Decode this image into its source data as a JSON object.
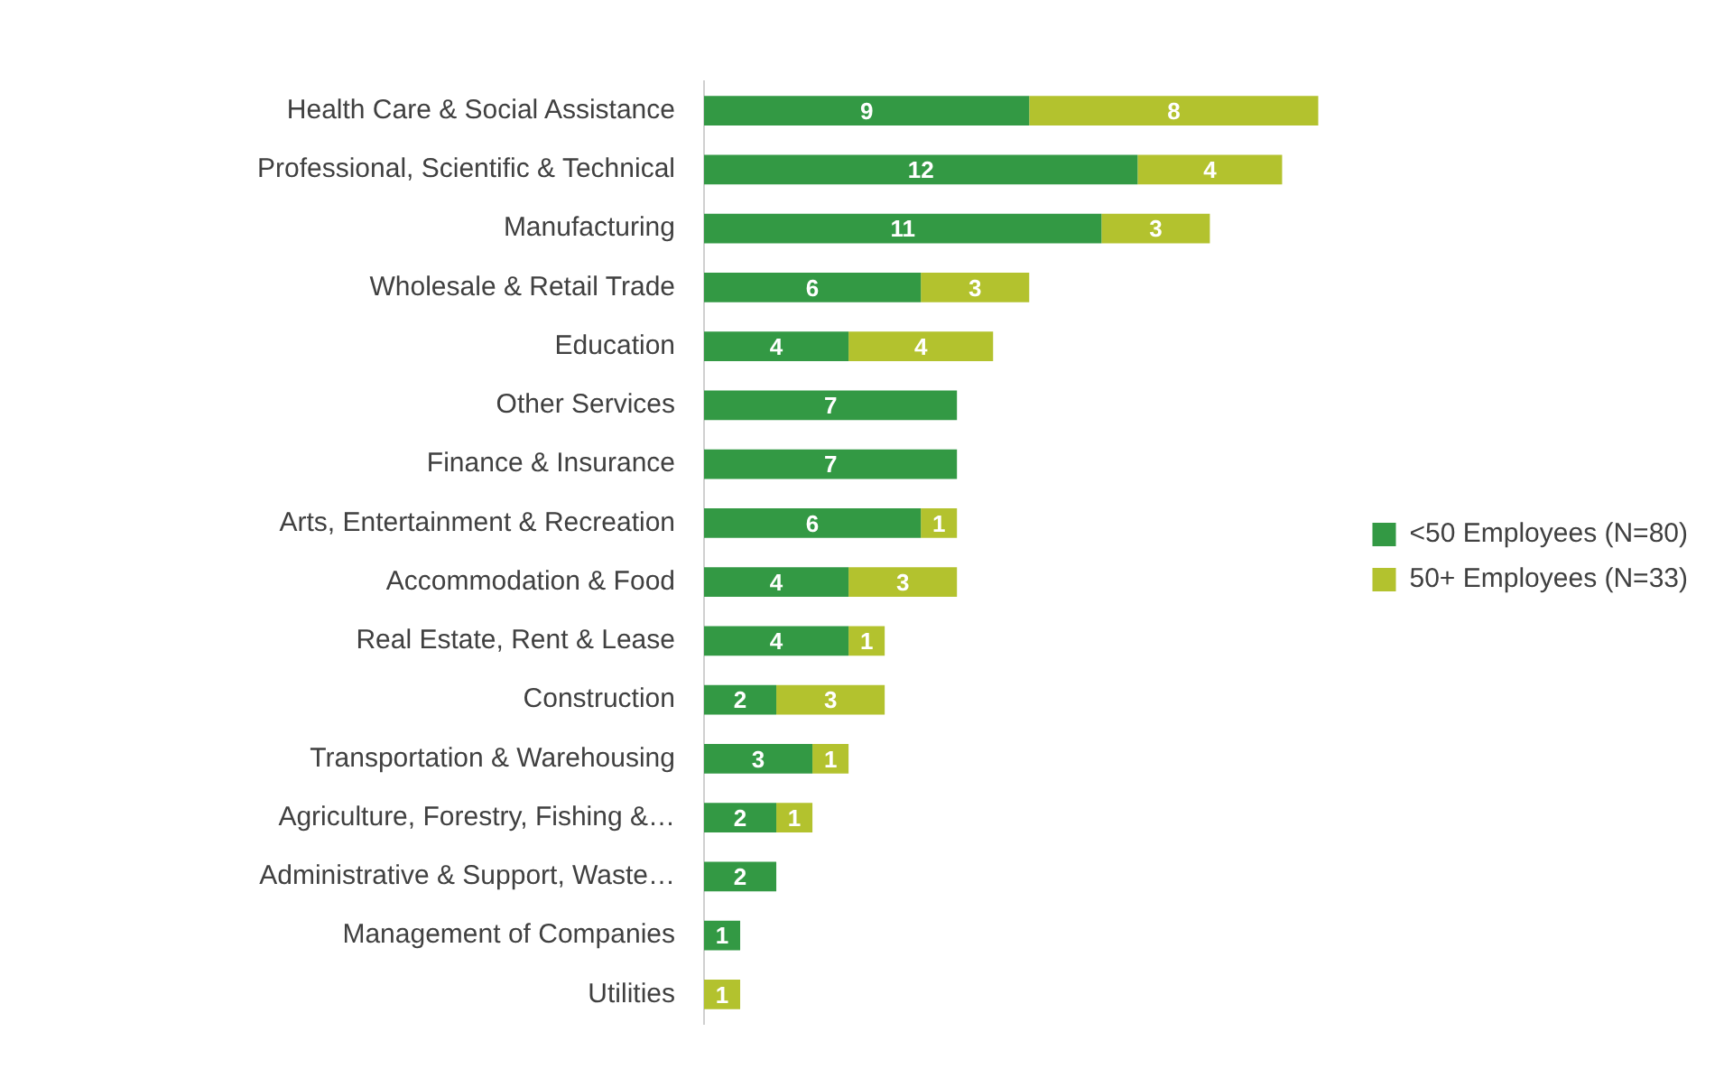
{
  "chart_data": {
    "type": "bar",
    "orientation": "horizontal",
    "stacked": true,
    "data_labels": true,
    "legend": "right",
    "tick_labels": "y",
    "categories": [
      "Health Care & Social Assistance",
      "Professional, Scientific & Technical",
      "Manufacturing",
      "Wholesale & Retail Trade",
      "Education",
      "Other Services",
      "Finance & Insurance",
      "Arts, Entertainment & Recreation",
      "Accommodation & Food",
      "Real Estate, Rent & Lease",
      "Construction",
      "Transportation & Warehousing",
      "Agriculture, Forestry, Fishing &…",
      "Administrative & Support, Waste…",
      "Management of Companies",
      "Utilities"
    ],
    "series": [
      {
        "name": "<50 Employees (N=80)",
        "color": "#339944",
        "values": [
          9,
          12,
          11,
          6,
          4,
          7,
          7,
          6,
          4,
          4,
          2,
          3,
          2,
          2,
          1,
          null
        ]
      },
      {
        "name": "50+ Employees (N=33)",
        "color": "#b3c22e",
        "values": [
          8,
          4,
          3,
          3,
          4,
          null,
          null,
          1,
          3,
          1,
          3,
          1,
          1,
          null,
          null,
          1
        ]
      }
    ]
  }
}
